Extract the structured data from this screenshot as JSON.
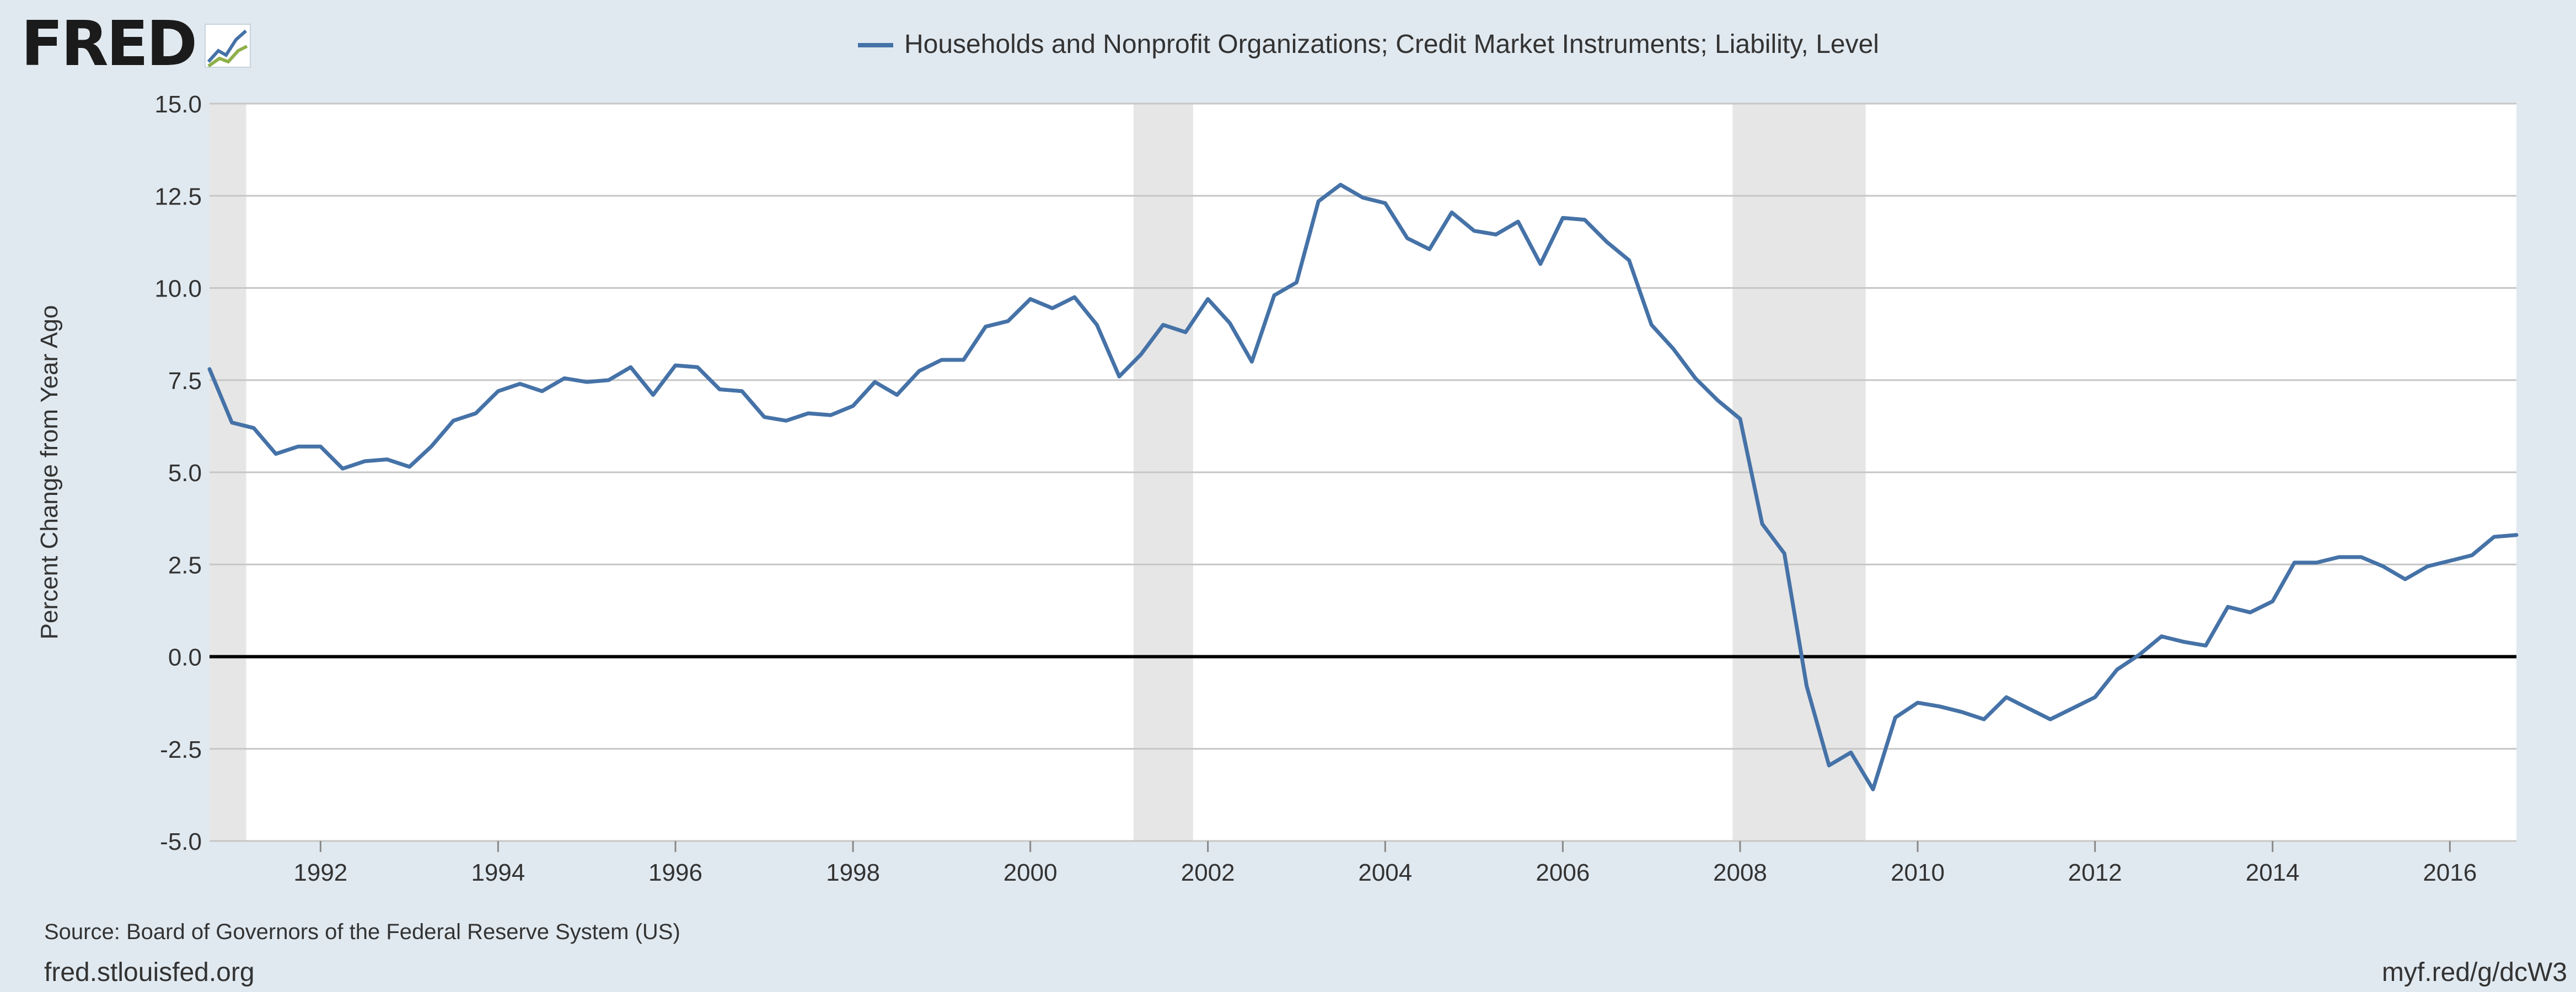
{
  "logo": {
    "text": "FRED",
    "icon": "fred-chart-icon"
  },
  "footer": {
    "source": "Source: Board of Governors of the Federal Reserve System (US)",
    "site": "fred.stlouisfed.org",
    "short_link": "myf.red/g/dcW3"
  },
  "colors": {
    "background": "#e1e9f0",
    "plot_background": "#ffffff",
    "series_line": "#4572a7",
    "recession_band": "#e6e6e6",
    "grid": "#c6c6c6",
    "zero_line": "#000000",
    "text": "#333333"
  },
  "chart_data": {
    "type": "line",
    "title": "",
    "xlabel": "",
    "ylabel": "Percent Change from Year Ago",
    "xlim": [
      "1990-10-01",
      "2016-10-01"
    ],
    "ylim": [
      -5.0,
      15.0
    ],
    "x_ticks": [
      "1992",
      "1994",
      "1996",
      "1998",
      "2000",
      "2002",
      "2004",
      "2006",
      "2008",
      "2010",
      "2012",
      "2014",
      "2016"
    ],
    "y_ticks": [
      "-5.0",
      "-2.5",
      "0.0",
      "2.5",
      "5.0",
      "7.5",
      "10.0",
      "12.5",
      "15.0"
    ],
    "grid": true,
    "legend_position": "top-center",
    "recessions": [
      {
        "start": "1990-07-01",
        "end": "1991-03-01"
      },
      {
        "start": "2001-03-01",
        "end": "2001-11-01"
      },
      {
        "start": "2007-12-01",
        "end": "2009-06-01"
      }
    ],
    "series": [
      {
        "name": "Households and Nonprofit Organizations; Credit Market Instruments; Liability, Level",
        "x": [
          "1990-10-01",
          "1991-01-01",
          "1991-04-01",
          "1991-07-01",
          "1991-10-01",
          "1992-01-01",
          "1992-04-01",
          "1992-07-01",
          "1992-10-01",
          "1993-01-01",
          "1993-04-01",
          "1993-07-01",
          "1993-10-01",
          "1994-01-01",
          "1994-04-01",
          "1994-07-01",
          "1994-10-01",
          "1995-01-01",
          "1995-04-01",
          "1995-07-01",
          "1995-10-01",
          "1996-01-01",
          "1996-04-01",
          "1996-07-01",
          "1996-10-01",
          "1997-01-01",
          "1997-04-01",
          "1997-07-01",
          "1997-10-01",
          "1998-01-01",
          "1998-04-01",
          "1998-07-01",
          "1998-10-01",
          "1999-01-01",
          "1999-04-01",
          "1999-07-01",
          "1999-10-01",
          "2000-01-01",
          "2000-04-01",
          "2000-07-01",
          "2000-10-01",
          "2001-01-01",
          "2001-04-01",
          "2001-07-01",
          "2001-10-01",
          "2002-01-01",
          "2002-04-01",
          "2002-07-01",
          "2002-10-01",
          "2003-01-01",
          "2003-04-01",
          "2003-07-01",
          "2003-10-01",
          "2004-01-01",
          "2004-04-01",
          "2004-07-01",
          "2004-10-01",
          "2005-01-01",
          "2005-04-01",
          "2005-07-01",
          "2005-10-01",
          "2006-01-01",
          "2006-04-01",
          "2006-07-01",
          "2006-10-01",
          "2007-01-01",
          "2007-04-01",
          "2007-07-01",
          "2007-10-01",
          "2008-01-01",
          "2008-04-01",
          "2008-07-01",
          "2008-10-01",
          "2009-01-01",
          "2009-04-01",
          "2009-07-01",
          "2009-10-01",
          "2010-01-01",
          "2010-04-01",
          "2010-07-01",
          "2010-10-01",
          "2011-01-01",
          "2011-04-01",
          "2011-07-01",
          "2011-10-01",
          "2012-01-01",
          "2012-04-01",
          "2012-07-01",
          "2012-10-01",
          "2013-01-01",
          "2013-04-01",
          "2013-07-01",
          "2013-10-01",
          "2014-01-01",
          "2014-04-01",
          "2014-07-01",
          "2014-10-01",
          "2015-01-01",
          "2015-04-01",
          "2015-07-01",
          "2015-10-01",
          "2016-01-01",
          "2016-04-01",
          "2016-07-01",
          "2016-10-01"
        ],
        "values": [
          7.8,
          6.35,
          6.2,
          5.5,
          5.7,
          5.7,
          5.1,
          5.3,
          5.35,
          5.15,
          5.7,
          6.4,
          6.6,
          7.2,
          7.4,
          7.2,
          7.55,
          7.45,
          7.5,
          7.85,
          7.1,
          7.9,
          7.85,
          7.25,
          7.2,
          6.5,
          6.4,
          6.6,
          6.55,
          6.8,
          7.45,
          7.1,
          7.75,
          8.05,
          8.05,
          8.95,
          9.1,
          9.7,
          9.45,
          9.75,
          9.0,
          7.6,
          8.2,
          9.0,
          8.8,
          9.7,
          9.05,
          8.0,
          9.8,
          10.15,
          12.35,
          12.8,
          12.45,
          12.3,
          11.35,
          11.05,
          12.05,
          11.55,
          11.45,
          11.8,
          10.65,
          11.9,
          11.85,
          11.25,
          10.75,
          9.0,
          8.35,
          7.55,
          6.95,
          6.45,
          3.6,
          2.8,
          -0.8,
          -2.95,
          -2.6,
          -3.6,
          -1.65,
          -1.25,
          -1.35,
          -1.5,
          -1.7,
          -1.1,
          -1.4,
          -1.7,
          -1.4,
          -1.1,
          -0.35,
          0.05,
          0.55,
          0.4,
          0.3,
          1.35,
          1.2,
          1.5,
          2.55,
          2.55,
          2.7,
          2.7,
          2.45,
          2.1,
          2.45,
          2.6,
          2.75,
          3.25,
          3.3
        ]
      }
    ]
  }
}
